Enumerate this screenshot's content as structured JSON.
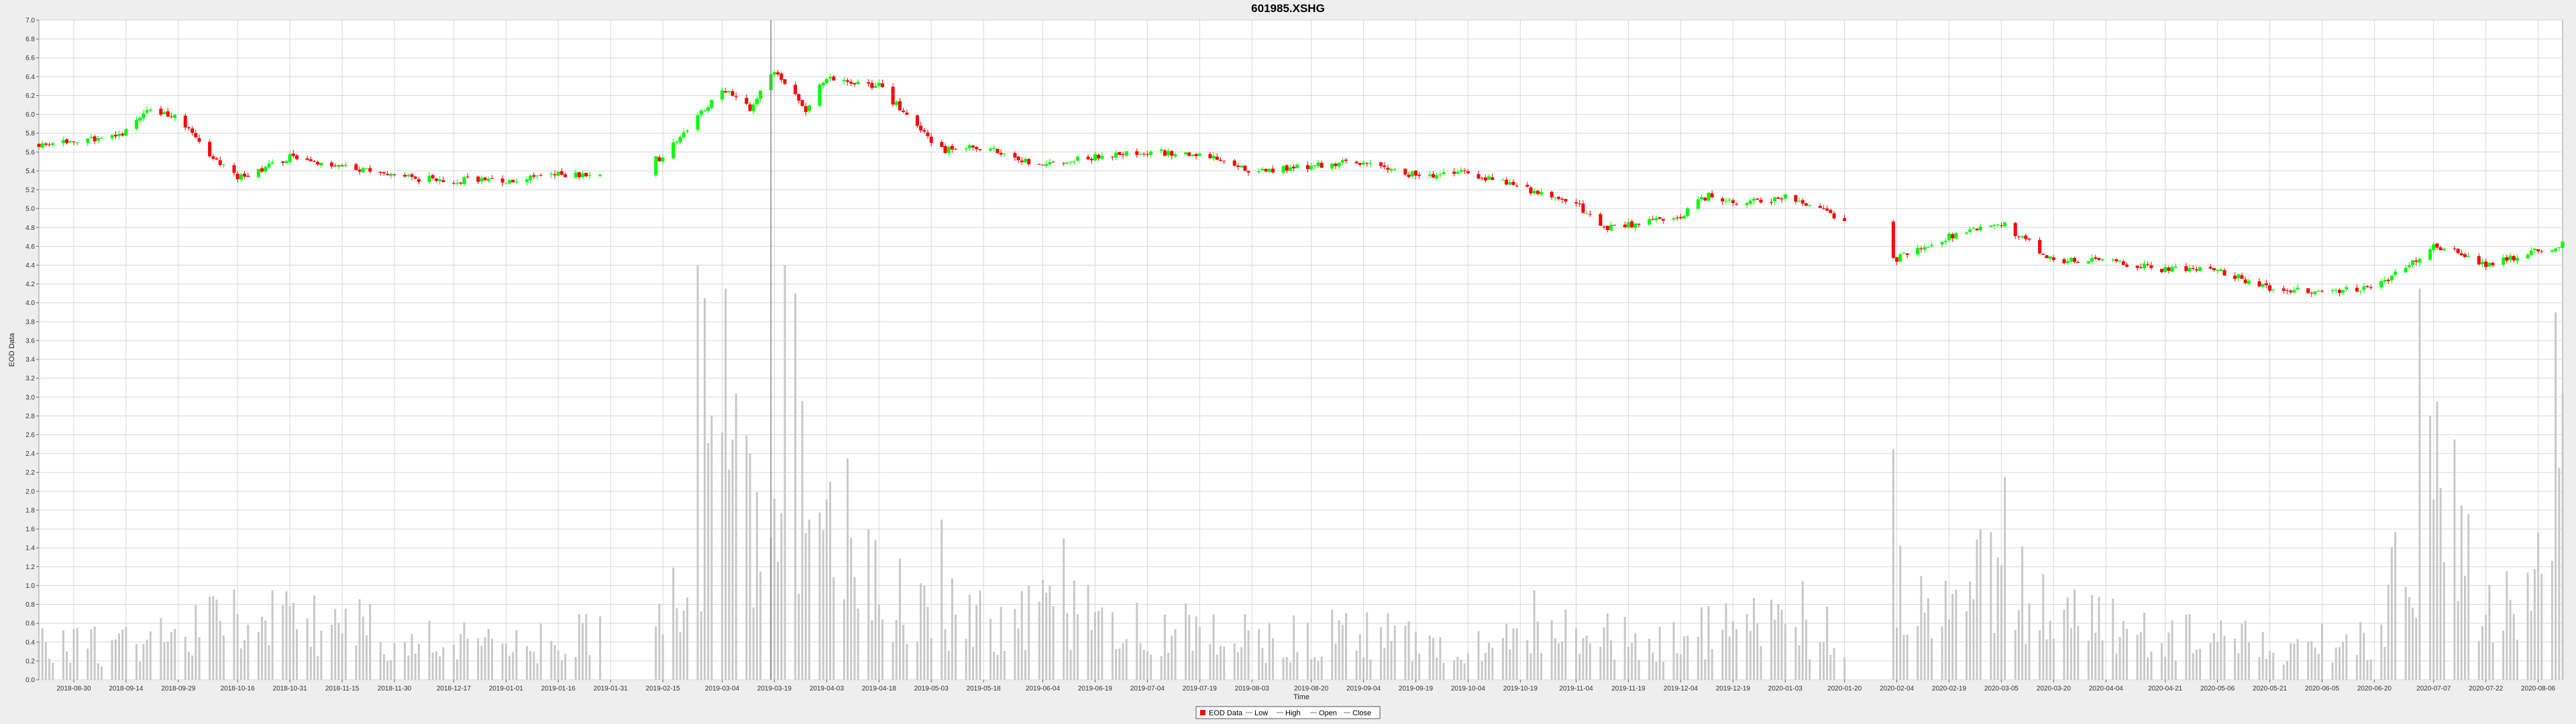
{
  "chart_data": {
    "type": "candlestick",
    "title": "601985.XSHG",
    "xlabel": "Time",
    "ylabel": "EOD Data",
    "ylim": [
      0.0,
      7.0
    ],
    "y_ticks": [
      "0.0",
      "0.2",
      "0.4",
      "0.6",
      "0.8",
      "1.0",
      "1.2",
      "1.4",
      "1.6",
      "1.8",
      "2.0",
      "2.2",
      "2.4",
      "2.6",
      "2.8",
      "3.0",
      "3.2",
      "3.4",
      "3.6",
      "3.8",
      "4.0",
      "4.2",
      "4.4",
      "4.6",
      "4.8",
      "5.0",
      "5.2",
      "5.4",
      "5.6",
      "5.8",
      "6.0",
      "6.2",
      "6.4",
      "6.6",
      "6.8",
      "7.0"
    ],
    "x_start": "2018-08-20",
    "x_end": "2020-08-13",
    "x_ticks": [
      "2018-08-30",
      "2018-09-14",
      "2018-09-29",
      "2018-10-16",
      "2018-10-31",
      "2018-11-15",
      "2018-11-30",
      "2018-12-17",
      "2019-01-01",
      "2019-01-16",
      "2019-01-31",
      "2019-02-15",
      "2019-03-04",
      "2019-03-19",
      "2019-04-03",
      "2019-04-18",
      "2019-05-03",
      "2019-05-18",
      "2019-06-04",
      "2019-06-19",
      "2019-07-04",
      "2019-07-19",
      "2019-08-03",
      "2019-08-20",
      "2019-09-04",
      "2019-09-19",
      "2019-10-04",
      "2019-10-19",
      "2019-11-04",
      "2019-11-19",
      "2019-12-04",
      "2019-12-19",
      "2020-01-03",
      "2020-01-20",
      "2020-02-04",
      "2020-02-19",
      "2020-03-05",
      "2020-03-20",
      "2020-04-04",
      "2020-04-21",
      "2020-05-06",
      "2020-05-21",
      "2020-06-05",
      "2020-06-20",
      "2020-07-07",
      "2020-07-22",
      "2020-08-06"
    ],
    "grid": true,
    "legend_position": "bottom-center",
    "legend": [
      "EOD Data",
      "Low",
      "High",
      "Open",
      "Close"
    ],
    "colors": {
      "up": "#00ff00",
      "down": "#ff0000",
      "volume": "#c8c8c8",
      "grid": "#d9d9d9",
      "plot_bg": "#ffffff",
      "crosshair": "#888888"
    },
    "crosshair_date": "2019-03-18",
    "price_anchors": [
      [
        "2018-08-20",
        5.68
      ],
      [
        "2018-09-05",
        5.74
      ],
      [
        "2018-09-14",
        5.82
      ],
      [
        "2018-09-20",
        6.02
      ],
      [
        "2018-09-28",
        6.0
      ],
      [
        "2018-10-08",
        5.55
      ],
      [
        "2018-10-16",
        5.32
      ],
      [
        "2018-10-31",
        5.55
      ],
      [
        "2018-11-15",
        5.45
      ],
      [
        "2018-11-30",
        5.33
      ],
      [
        "2018-12-17",
        5.3
      ],
      [
        "2019-01-01",
        5.3
      ],
      [
        "2019-01-16",
        5.37
      ],
      [
        "2019-01-31",
        5.35
      ],
      [
        "2019-02-15",
        5.55
      ],
      [
        "2019-02-22",
        5.85
      ],
      [
        "2019-03-04",
        6.28
      ],
      [
        "2019-03-12",
        6.05
      ],
      [
        "2019-03-19",
        6.45
      ],
      [
        "2019-03-28",
        6.05
      ],
      [
        "2019-04-03",
        6.4
      ],
      [
        "2019-04-18",
        6.3
      ],
      [
        "2019-04-28",
        5.9
      ],
      [
        "2019-05-06",
        5.62
      ],
      [
        "2019-05-18",
        5.65
      ],
      [
        "2019-06-04",
        5.45
      ],
      [
        "2019-06-19",
        5.55
      ],
      [
        "2019-07-04",
        5.6
      ],
      [
        "2019-07-19",
        5.58
      ],
      [
        "2019-08-03",
        5.4
      ],
      [
        "2019-08-20",
        5.45
      ],
      [
        "2019-09-04",
        5.5
      ],
      [
        "2019-09-19",
        5.35
      ],
      [
        "2019-10-04",
        5.38
      ],
      [
        "2019-10-19",
        5.22
      ],
      [
        "2019-11-04",
        5.05
      ],
      [
        "2019-11-12",
        4.8
      ],
      [
        "2019-11-19",
        4.82
      ],
      [
        "2019-12-04",
        4.92
      ],
      [
        "2019-12-12",
        5.15
      ],
      [
        "2019-12-19",
        5.05
      ],
      [
        "2020-01-03",
        5.12
      ],
      [
        "2020-01-20",
        4.88
      ],
      [
        "2020-02-03",
        4.45
      ],
      [
        "2020-02-19",
        4.7
      ],
      [
        "2020-03-05",
        4.85
      ],
      [
        "2020-03-20",
        4.45
      ],
      [
        "2020-04-04",
        4.45
      ],
      [
        "2020-04-21",
        4.35
      ],
      [
        "2020-05-06",
        4.35
      ],
      [
        "2020-05-21",
        4.15
      ],
      [
        "2020-06-05",
        4.12
      ],
      [
        "2020-06-20",
        4.15
      ],
      [
        "2020-07-07",
        4.6
      ],
      [
        "2020-07-14",
        4.55
      ],
      [
        "2020-07-22",
        4.4
      ],
      [
        "2020-08-06",
        4.55
      ],
      [
        "2020-08-13",
        4.62
      ]
    ],
    "volume_anchors": [
      [
        "2018-08-20",
        0.45
      ],
      [
        "2018-09-10",
        0.4
      ],
      [
        "2018-09-25",
        0.55
      ],
      [
        "2018-10-16",
        0.7
      ],
      [
        "2018-10-31",
        0.75
      ],
      [
        "2018-11-30",
        0.55
      ],
      [
        "2019-01-01",
        0.45
      ],
      [
        "2019-01-31",
        0.55
      ],
      [
        "2019-02-15",
        0.9
      ],
      [
        "2019-02-25",
        1.5
      ],
      [
        "2019-03-04",
        2.6
      ],
      [
        "2019-03-19",
        1.8
      ],
      [
        "2019-03-28",
        2.2
      ],
      [
        "2019-04-10",
        1.2
      ],
      [
        "2019-04-28",
        0.9
      ],
      [
        "2019-05-18",
        0.7
      ],
      [
        "2019-06-04",
        0.8
      ],
      [
        "2019-07-04",
        0.65
      ],
      [
        "2019-08-03",
        0.5
      ],
      [
        "2019-09-04",
        0.55
      ],
      [
        "2019-10-04",
        0.4
      ],
      [
        "2019-11-04",
        0.55
      ],
      [
        "2019-12-04",
        0.5
      ],
      [
        "2019-12-19",
        0.65
      ],
      [
        "2020-01-20",
        0.55
      ],
      [
        "2020-02-04",
        1.1
      ],
      [
        "2020-02-19",
        0.8
      ],
      [
        "2020-03-05",
        1.3
      ],
      [
        "2020-03-20",
        0.75
      ],
      [
        "2020-04-21",
        0.55
      ],
      [
        "2020-05-21",
        0.45
      ],
      [
        "2020-06-20",
        0.45
      ],
      [
        "2020-07-07",
        2.4
      ],
      [
        "2020-07-14",
        1.7
      ],
      [
        "2020-07-22",
        0.8
      ],
      [
        "2020-08-06",
        1.2
      ],
      [
        "2020-08-13",
        2.3
      ]
    ],
    "volume_spikes": [
      [
        "2019-02-25",
        4.4
      ],
      [
        "2019-02-27",
        4.05
      ],
      [
        "2019-03-01",
        2.8
      ],
      [
        "2019-03-05",
        4.15
      ],
      [
        "2019-03-07",
        2.55
      ],
      [
        "2019-03-12",
        2.4
      ],
      [
        "2019-03-22",
        4.4
      ],
      [
        "2019-03-25",
        4.1
      ],
      [
        "2019-03-29",
        1.7
      ],
      [
        "2019-04-04",
        2.1
      ],
      [
        "2019-04-09",
        2.35
      ],
      [
        "2019-04-15",
        1.6
      ],
      [
        "2019-05-06",
        1.7
      ],
      [
        "2019-06-10",
        1.5
      ],
      [
        "2019-10-23",
        0.95
      ],
      [
        "2020-01-08",
        1.05
      ],
      [
        "2020-02-03",
        2.45
      ],
      [
        "2020-02-28",
        1.6
      ],
      [
        "2020-03-06",
        2.15
      ],
      [
        "2020-07-03",
        4.15
      ],
      [
        "2020-07-06",
        2.8
      ],
      [
        "2020-07-08",
        2.95
      ],
      [
        "2020-07-13",
        2.55
      ],
      [
        "2020-08-11",
        3.9
      ],
      [
        "2020-08-12",
        2.25
      ]
    ],
    "gaps": [
      [
        "2019-01-29",
        "2019-02-12"
      ],
      [
        "2020-01-21",
        "2020-02-02"
      ]
    ]
  }
}
